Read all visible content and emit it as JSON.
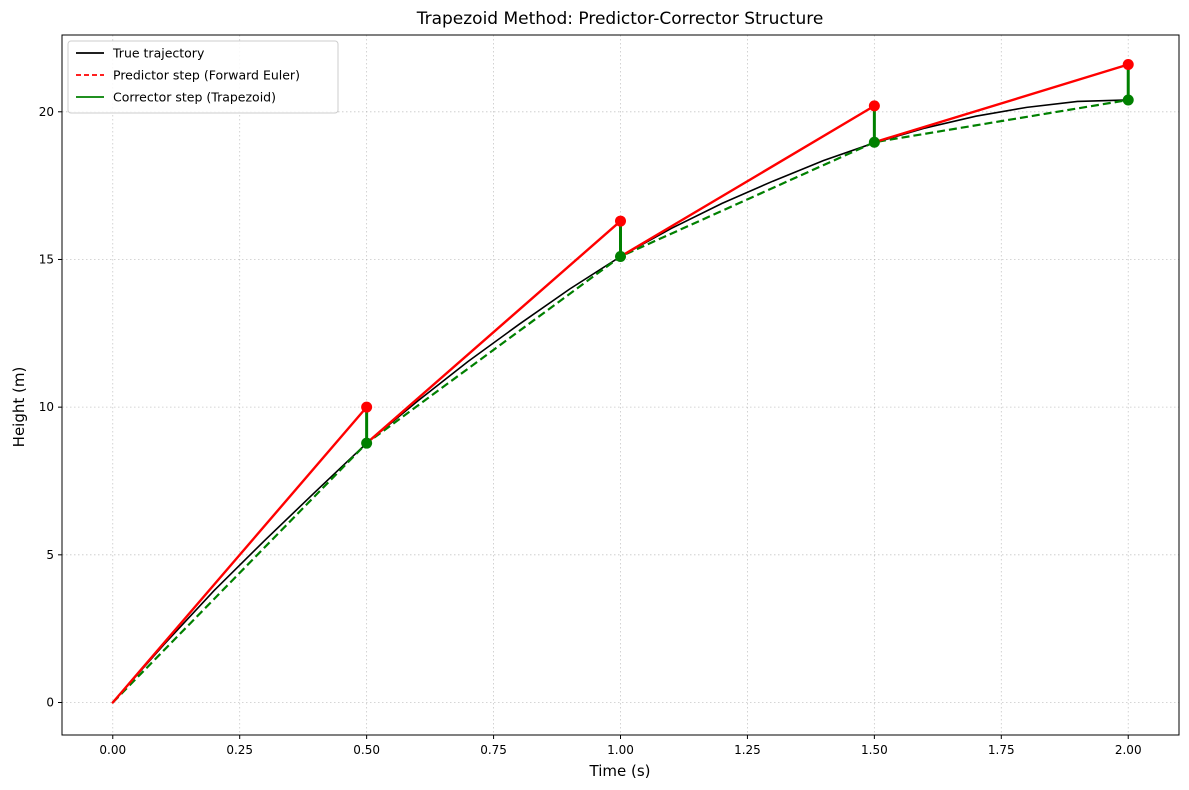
{
  "chart_data": {
    "type": "line",
    "title": "Trapezoid Method: Predictor-Corrector Structure",
    "xlabel": "Time (s)",
    "ylabel": "Height (m)",
    "xlim": [
      -0.1,
      2.1
    ],
    "ylim": [
      -1.1,
      22.6
    ],
    "xticks": [
      0.0,
      0.25,
      0.5,
      0.75,
      1.0,
      1.25,
      1.5,
      1.75,
      2.0
    ],
    "xtick_labels": [
      "0.00",
      "0.25",
      "0.50",
      "0.75",
      "1.00",
      "1.25",
      "1.50",
      "1.75",
      "2.00"
    ],
    "yticks": [
      0,
      5,
      10,
      15,
      20
    ],
    "ytick_labels": [
      "0",
      "5",
      "10",
      "15",
      "20"
    ],
    "grid": true,
    "legend_position": "top-left",
    "true_trajectory": {
      "name": "True trajectory",
      "color": "#000000",
      "style": "solid",
      "x": [
        0.0,
        0.1,
        0.2,
        0.3,
        0.4,
        0.5,
        0.6,
        0.7,
        0.8,
        0.9,
        1.0,
        1.1,
        1.2,
        1.3,
        1.4,
        1.5,
        1.6,
        1.7,
        1.8,
        1.9,
        2.0
      ],
      "y": [
        0.0,
        1.95,
        3.8,
        5.5,
        7.15,
        8.78,
        10.2,
        11.55,
        12.8,
        14.0,
        15.1,
        16.05,
        16.9,
        17.65,
        18.35,
        18.95,
        19.45,
        19.85,
        20.15,
        20.35,
        20.4
      ]
    },
    "predictor": {
      "name": "Predictor step (Forward Euler)",
      "color": "#ff0000",
      "segments": [
        {
          "x": [
            0.0,
            0.5
          ],
          "y": [
            0.0,
            10.0
          ]
        },
        {
          "x": [
            0.5,
            1.0
          ],
          "y": [
            8.78,
            16.3
          ]
        },
        {
          "x": [
            1.0,
            1.5
          ],
          "y": [
            15.1,
            20.2
          ]
        },
        {
          "x": [
            1.5,
            2.0
          ],
          "y": [
            18.97,
            21.6
          ]
        }
      ],
      "points": {
        "x": [
          0.5,
          1.0,
          1.5,
          2.0
        ],
        "y": [
          10.0,
          16.3,
          20.2,
          21.6
        ]
      }
    },
    "corrector": {
      "name": "Corrector step (Trapezoid)",
      "color": "#008000",
      "path": {
        "x": [
          0.0,
          0.5,
          1.0,
          1.5,
          2.0
        ],
        "y": [
          0.0,
          8.78,
          15.1,
          18.97,
          20.4
        ]
      },
      "points": {
        "x": [
          0.5,
          1.0,
          1.5,
          2.0
        ],
        "y": [
          8.78,
          15.1,
          18.97,
          20.4
        ]
      },
      "corrections": [
        {
          "x": 0.5,
          "from": 10.0,
          "to": 8.78
        },
        {
          "x": 1.0,
          "from": 16.3,
          "to": 15.1
        },
        {
          "x": 1.5,
          "from": 20.2,
          "to": 18.97
        },
        {
          "x": 2.0,
          "from": 21.6,
          "to": 20.4
        }
      ]
    },
    "legend": [
      {
        "label": "True trajectory",
        "color": "#000000",
        "style": "solid"
      },
      {
        "label": "Predictor step (Forward Euler)",
        "color": "#ff0000",
        "style": "dashed"
      },
      {
        "label": "Corrector step (Trapezoid)",
        "color": "#008000",
        "style": "solid"
      }
    ]
  }
}
